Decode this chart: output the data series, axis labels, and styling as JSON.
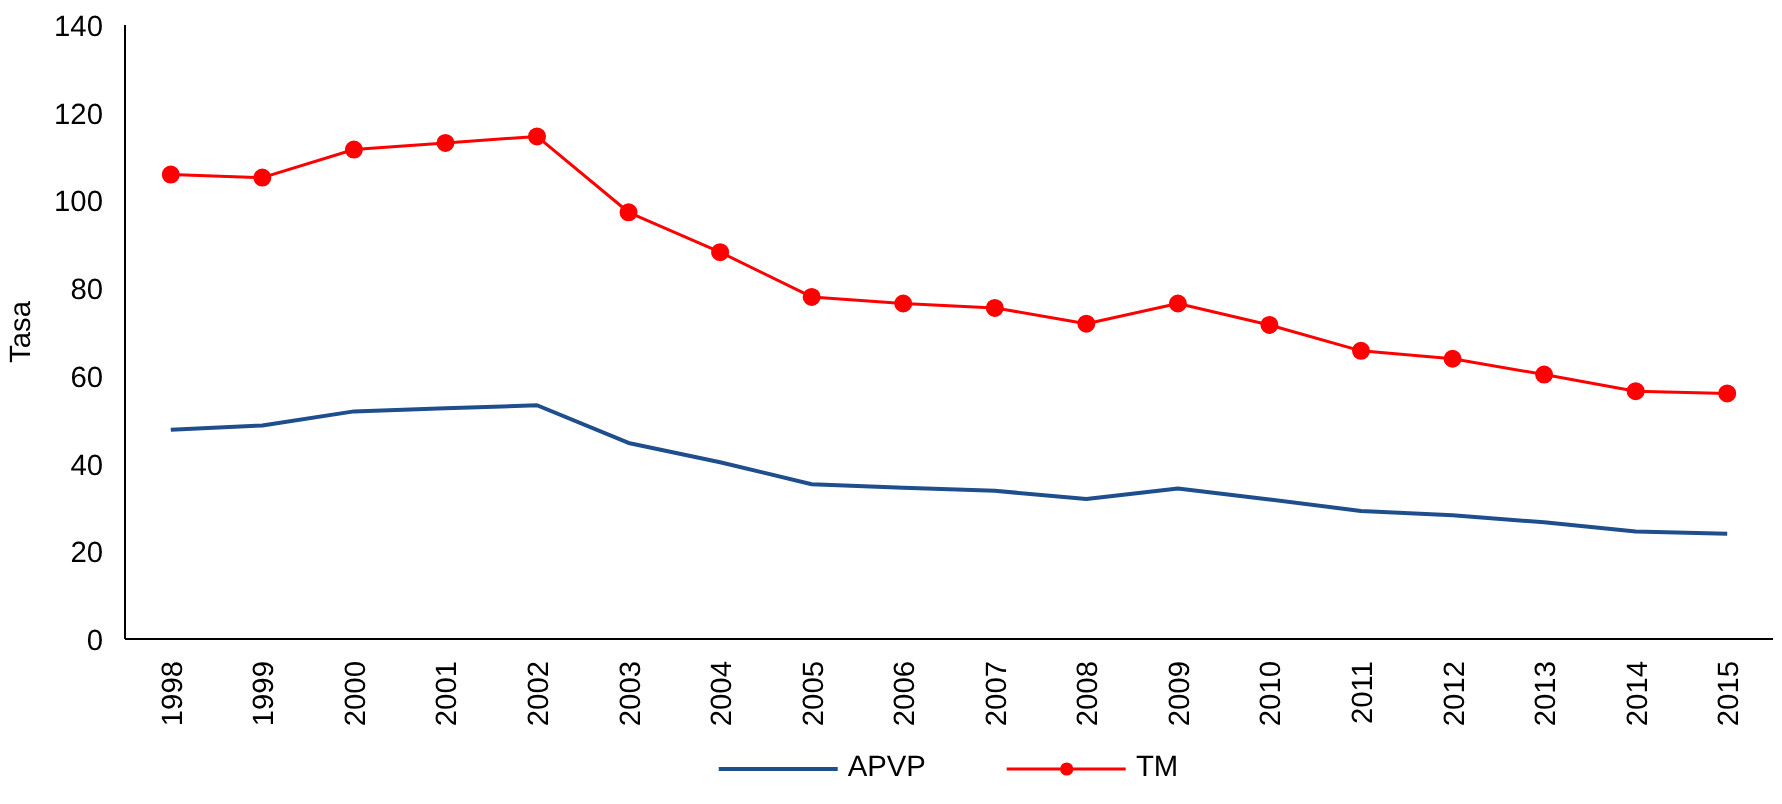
{
  "chart_data": {
    "type": "line",
    "ylabel": "Tasa",
    "categories": [
      "1998",
      "1999",
      "2000",
      "2001",
      "2002",
      "2003",
      "2004",
      "2005",
      "2006",
      "2007",
      "2008",
      "2009",
      "2010",
      "2011",
      "2012",
      "2013",
      "2014",
      "2015"
    ],
    "series": [
      {
        "name": "APVP",
        "color": "#1f4e8c",
        "marker": "none",
        "values": [
          47.7,
          48.7,
          51.9,
          52.6,
          53.3,
          44.7,
          40.3,
          35.3,
          34.5,
          33.8,
          31.9,
          34.3,
          31.8,
          29.2,
          28.2,
          26.6,
          24.5,
          24.0
        ]
      },
      {
        "name": "TM",
        "color": "#ff0000",
        "marker": "circle",
        "values": [
          105.9,
          105.2,
          111.6,
          113.1,
          114.6,
          97.3,
          88.2,
          78.0,
          76.5,
          75.5,
          71.9,
          76.5,
          71.6,
          65.7,
          63.9,
          60.3,
          56.5,
          56.0
        ]
      }
    ],
    "ylim": [
      0,
      140
    ],
    "yticks": [
      0,
      20,
      40,
      60,
      80,
      100,
      120,
      140
    ],
    "grid": false,
    "legend": "bottom"
  }
}
